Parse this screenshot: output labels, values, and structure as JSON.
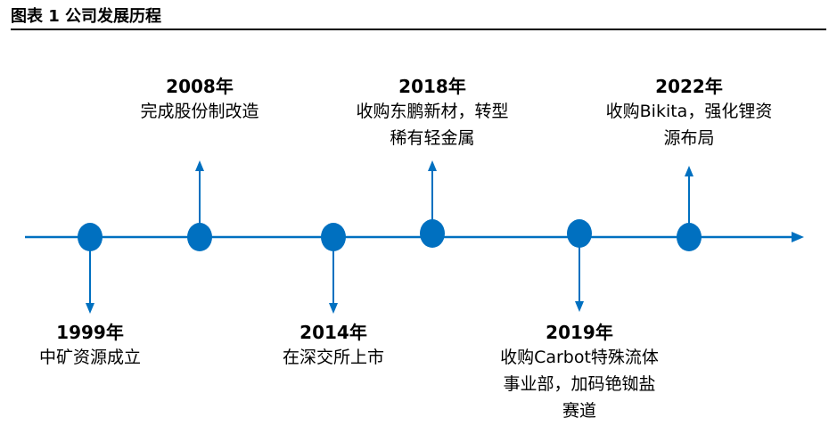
{
  "figure": {
    "title": "图表 1 公司发展历程"
  },
  "colors": {
    "accent": "#0070C0"
  },
  "events": [
    {
      "year": "1999年",
      "desc_lines": [
        "中矿资源成立"
      ]
    },
    {
      "year": "2008年",
      "desc_lines": [
        "完成股份制改造"
      ]
    },
    {
      "year": "2014年",
      "desc_lines": [
        "在深交所上市"
      ]
    },
    {
      "year": "2018年",
      "desc_lines": [
        "收购东鹏新材，转型",
        "稀有轻金属"
      ]
    },
    {
      "year": "2019年",
      "desc_lines": [
        "收购Carbot特殊流体",
        "事业部，加码铯铷盐",
        "赛道"
      ]
    },
    {
      "year": "2022年",
      "desc_lines": [
        "收购Bikita，强化锂资",
        "源布局"
      ]
    }
  ]
}
